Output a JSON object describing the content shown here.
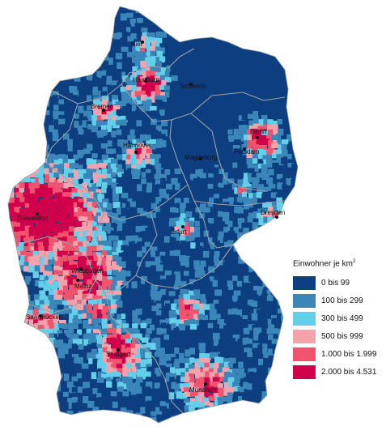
{
  "legend": {
    "title": "Einwohner je km",
    "title_sup": "2",
    "classes": [
      {
        "label": "0 bis 99",
        "color": "#0d3f80"
      },
      {
        "label": "100 bis 299",
        "color": "#3a86b8"
      },
      {
        "label": "300 bis 499",
        "color": "#63cfe8"
      },
      {
        "label": "500 bis 999",
        "color": "#f4a3ac"
      },
      {
        "label": "1.000 bis 1.999",
        "color": "#f0536e"
      },
      {
        "label": "2.000 bis 4.531",
        "color": "#d1004a"
      }
    ]
  },
  "cities": [
    {
      "name": "Kiel"
    },
    {
      "name": "Hamburg"
    },
    {
      "name": "Schwerin"
    },
    {
      "name": "Bremen"
    },
    {
      "name": "Berlin"
    },
    {
      "name": "Potsdam"
    },
    {
      "name": "Hannover"
    },
    {
      "name": "Magdeburg"
    },
    {
      "name": "Düsseldorf"
    },
    {
      "name": "Dresden"
    },
    {
      "name": "Erfurt"
    },
    {
      "name": "Wiesbaden"
    },
    {
      "name": "Mainz"
    },
    {
      "name": "Saarbrücken"
    },
    {
      "name": "Stuttgart"
    },
    {
      "name": "München"
    }
  ],
  "colors": {
    "state_border": "#9aa0aa",
    "city_dot": "#111111"
  }
}
